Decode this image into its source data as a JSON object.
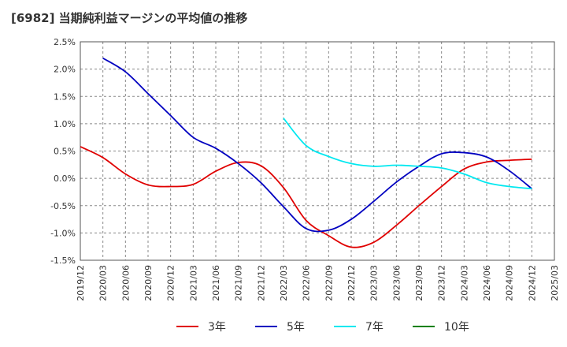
{
  "chart_data": {
    "type": "line",
    "title": "[6982]  当期純利益マージンの平均値の推移",
    "xlabel": "",
    "ylabel": "",
    "x_ticks": [
      "2019/12",
      "2020/03",
      "2020/06",
      "2020/09",
      "2020/12",
      "2021/03",
      "2021/06",
      "2021/09",
      "2021/12",
      "2022/03",
      "2022/06",
      "2022/09",
      "2022/12",
      "2023/03",
      "2023/06",
      "2023/09",
      "2023/12",
      "2024/03",
      "2024/06",
      "2024/09",
      "2024/12",
      "2025/03"
    ],
    "y_ticks": [
      "2.5%",
      "2.0%",
      "1.5%",
      "1.0%",
      "0.5%",
      "0.0%",
      "-0.5%",
      "-1.0%",
      "-1.5%"
    ],
    "ylim": [
      -1.5,
      2.5
    ],
    "grid": true,
    "legend_position": "bottom",
    "series": [
      {
        "name": "3年",
        "color": "#e00000",
        "x": [
          "2019/12",
          "2020/03",
          "2020/06",
          "2020/09",
          "2020/12",
          "2021/03",
          "2021/06",
          "2021/09",
          "2021/12",
          "2022/03",
          "2022/06",
          "2022/09",
          "2022/12",
          "2023/03",
          "2023/06",
          "2023/09",
          "2023/12",
          "2024/03",
          "2024/06",
          "2024/09",
          "2024/12"
        ],
        "values": [
          0.58,
          0.38,
          0.08,
          -0.12,
          -0.15,
          -0.11,
          0.13,
          0.29,
          0.23,
          -0.17,
          -0.77,
          -1.05,
          -1.26,
          -1.17,
          -0.86,
          -0.5,
          -0.15,
          0.17,
          0.3,
          0.33,
          0.35
        ]
      },
      {
        "name": "5年",
        "color": "#0000c0",
        "x": [
          "2020/03",
          "2020/06",
          "2020/09",
          "2020/12",
          "2021/03",
          "2021/06",
          "2021/09",
          "2021/12",
          "2022/03",
          "2022/06",
          "2022/09",
          "2022/12",
          "2023/03",
          "2023/06",
          "2023/09",
          "2023/12",
          "2024/03",
          "2024/06",
          "2024/09",
          "2024/12"
        ],
        "values": [
          2.2,
          1.95,
          1.55,
          1.15,
          0.75,
          0.55,
          0.27,
          -0.08,
          -0.52,
          -0.92,
          -0.95,
          -0.75,
          -0.42,
          -0.07,
          0.22,
          0.45,
          0.47,
          0.39,
          0.14,
          -0.19
        ]
      },
      {
        "name": "7年",
        "color": "#00e8f0",
        "x": [
          "2022/03",
          "2022/06",
          "2022/09",
          "2022/12",
          "2023/03",
          "2023/06",
          "2023/09",
          "2023/12",
          "2024/03",
          "2024/06",
          "2024/09",
          "2024/12"
        ],
        "values": [
          1.1,
          0.6,
          0.4,
          0.27,
          0.22,
          0.24,
          0.22,
          0.19,
          0.08,
          -0.08,
          -0.15,
          -0.19
        ]
      },
      {
        "name": "10年",
        "color": "#008000",
        "x": [],
        "values": []
      }
    ]
  }
}
